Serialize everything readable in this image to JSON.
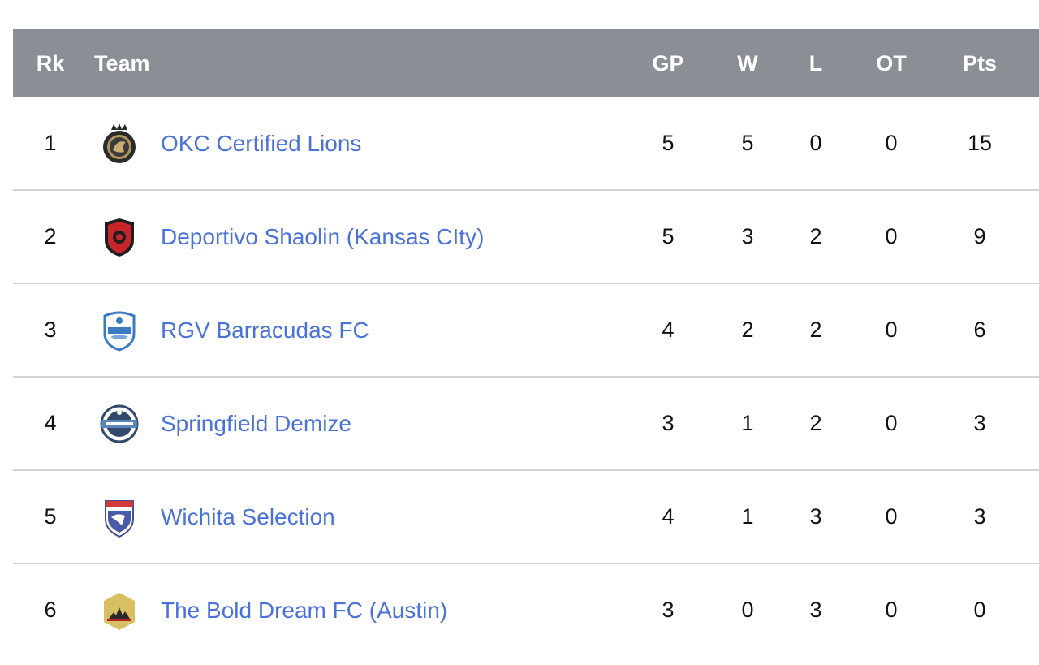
{
  "header": {
    "rank": "Rk",
    "team": "Team",
    "gp": "GP",
    "w": "W",
    "l": "L",
    "ot": "OT",
    "pts": "Pts"
  },
  "rows": [
    {
      "rank": "1",
      "team": "OKC Certified Lions",
      "logo": "lion-crest-icon",
      "gp": "5",
      "w": "5",
      "l": "0",
      "ot": "0",
      "pts": "15"
    },
    {
      "rank": "2",
      "team": "Deportivo Shaolin (Kansas CIty)",
      "logo": "red-shield-icon",
      "gp": "5",
      "w": "3",
      "l": "2",
      "ot": "0",
      "pts": "9"
    },
    {
      "rank": "3",
      "team": "RGV Barracudas FC",
      "logo": "barracuda-shield-icon",
      "gp": "4",
      "w": "2",
      "l": "2",
      "ot": "0",
      "pts": "6"
    },
    {
      "rank": "4",
      "team": "Springfield Demize",
      "logo": "demize-crest-icon",
      "gp": "3",
      "w": "1",
      "l": "2",
      "ot": "0",
      "pts": "3"
    },
    {
      "rank": "5",
      "team": "Wichita Selection",
      "logo": "wichita-shield-icon",
      "gp": "4",
      "w": "1",
      "l": "3",
      "ot": "0",
      "pts": "3"
    },
    {
      "rank": "6",
      "team": "The Bold Dream FC (Austin)",
      "logo": "gold-shield-icon",
      "gp": "3",
      "w": "0",
      "l": "3",
      "ot": "0",
      "pts": "0"
    }
  ],
  "colors": {
    "header_bg": "#8a8f95",
    "link": "#4a72d9",
    "divider": "#d3d3d3"
  }
}
